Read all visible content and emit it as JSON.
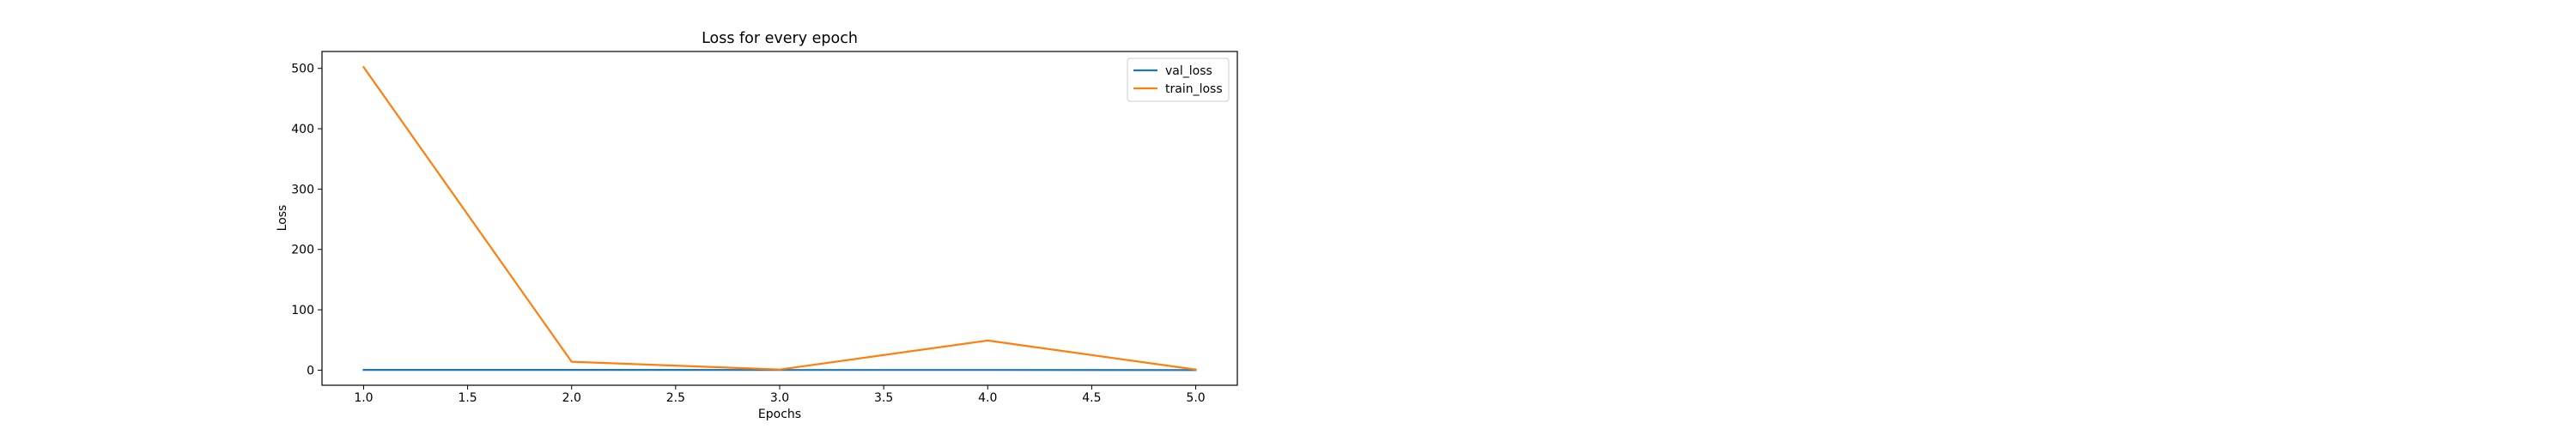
{
  "chart_data": {
    "type": "line",
    "title": "Loss for every epoch",
    "xlabel": "Epochs",
    "ylabel": "Loss",
    "x": [
      1.0,
      2.0,
      3.0,
      4.0,
      5.0
    ],
    "xlim": [
      0.8,
      5.2
    ],
    "ylim": [
      -25,
      528
    ],
    "x_ticks": [
      "1.0",
      "1.5",
      "2.0",
      "2.5",
      "3.0",
      "3.5",
      "4.0",
      "4.5",
      "5.0"
    ],
    "y_ticks": [
      "0",
      "100",
      "200",
      "300",
      "400",
      "500"
    ],
    "grid": false,
    "legend_position": "top-right",
    "series": [
      {
        "name": "val_loss",
        "color": "#1f77b4",
        "values": [
          0.5,
          0.4,
          0.3,
          0.3,
          0.2
        ]
      },
      {
        "name": "train_loss",
        "color": "#ff7f0e",
        "values": [
          502,
          14,
          1,
          49,
          1
        ]
      }
    ]
  }
}
